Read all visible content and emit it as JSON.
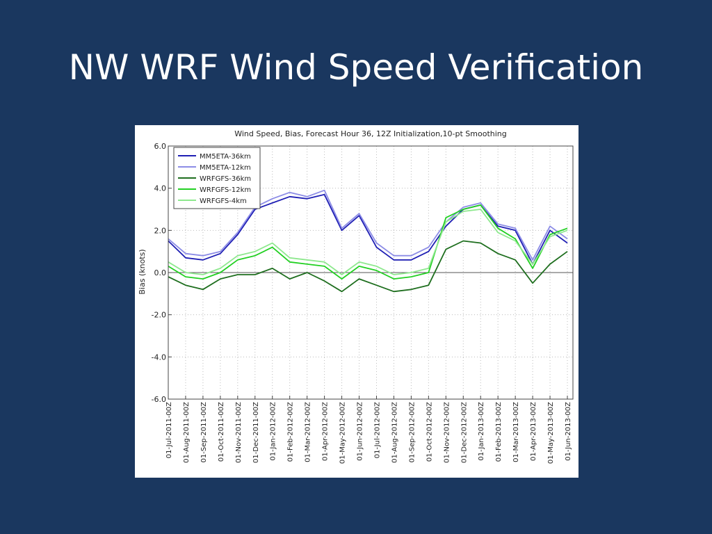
{
  "slide": {
    "title": "NW WRF Wind Speed Verification"
  },
  "chart_data": {
    "type": "line",
    "title": "Wind Speed, Bias, Forecast Hour 36, 12Z Initialization,10-pt Smoothing",
    "xlabel": "",
    "ylabel": "Bias (knots)",
    "ylim": [
      -6.0,
      6.0
    ],
    "yticks": [
      "6.0",
      "4.0",
      "2.0",
      "0.0",
      "-2.0",
      "-4.0",
      "-6.0"
    ],
    "ytick_values": [
      6,
      4,
      2,
      0,
      -2,
      -4,
      -6
    ],
    "grid": true,
    "legend_position": "top-left",
    "x": [
      "01-Jul-2011-00Z",
      "01-Aug-2011-00Z",
      "01-Sep-2011-00Z",
      "01-Oct-2011-00Z",
      "01-Nov-2011-00Z",
      "01-Dec-2011-00Z",
      "01-Jan-2012-00Z",
      "01-Feb-2012-00Z",
      "01-Mar-2012-00Z",
      "01-Apr-2012-00Z",
      "01-May-2012-00Z",
      "01-Jun-2012-00Z",
      "01-Jul-2012-00Z",
      "01-Aug-2012-00Z",
      "01-Sep-2012-00Z",
      "01-Oct-2012-00Z",
      "01-Nov-2012-00Z",
      "01-Dec-2012-00Z",
      "01-Jan-2013-00Z",
      "01-Feb-2013-00Z",
      "01-Mar-2013-00Z",
      "01-Apr-2013-00Z",
      "01-May-2013-00Z",
      "01-Jun-2013-00Z"
    ],
    "xticks": [
      "01-Jul-2011-00Z",
      "01-Aug-2011-00Z",
      "01-Sep-2011-00Z",
      "01-Oct-2011-00Z",
      "01-Nov-2011-00Z",
      "01-Dec-2011-00Z",
      "01-Jan-2012-00Z",
      "01-Feb-2012-00Z",
      "01-Mar-2012-00Z",
      "01-Apr-2012-00Z",
      "01-May-2012-00Z",
      "01-Jun-2012-00Z",
      "01-Jul-2012-00Z",
      "01-Aug-2012-00Z",
      "01-Sep-2012-00Z",
      "01-Oct-2012-00Z",
      "01-Nov-2012-00Z",
      "01-Dec-2012-00Z",
      "01-Jan-2013-00Z",
      "01-Feb-2013-00Z",
      "01-Mar-2013-00Z",
      "01-Apr-2013-00Z",
      "01-May-2013-00Z",
      "01-Jun-2013-00Z"
    ],
    "series": [
      {
        "name": "MM5ETA-36km",
        "color": "#1f1fb4",
        "values": [
          1.5,
          0.7,
          0.6,
          0.9,
          1.8,
          3.0,
          3.3,
          3.6,
          3.5,
          3.7,
          2.0,
          2.7,
          1.2,
          0.6,
          0.6,
          1.0,
          2.2,
          3.0,
          3.2,
          2.2,
          2.0,
          0.4,
          2.0,
          1.4
        ]
      },
      {
        "name": "MM5ETA-12km",
        "color": "#8c8ce6",
        "values": [
          1.6,
          0.9,
          0.8,
          1.0,
          1.9,
          3.1,
          3.5,
          3.8,
          3.6,
          3.9,
          2.1,
          2.8,
          1.4,
          0.8,
          0.8,
          1.2,
          2.4,
          3.1,
          3.3,
          2.3,
          2.1,
          0.6,
          2.2,
          1.6
        ]
      },
      {
        "name": "WRFGFS-36km",
        "color": "#1e6e1e",
        "values": [
          -0.2,
          -0.6,
          -0.8,
          -0.3,
          -0.1,
          -0.1,
          0.2,
          -0.3,
          0.0,
          -0.4,
          -0.9,
          -0.3,
          -0.6,
          -0.9,
          -0.8,
          -0.6,
          1.1,
          1.5,
          1.4,
          0.9,
          0.6,
          -0.5,
          0.4,
          1.0
        ]
      },
      {
        "name": "WRFGFS-12km",
        "color": "#22d022",
        "values": [
          0.3,
          -0.2,
          -0.3,
          0.0,
          0.6,
          0.8,
          1.2,
          0.5,
          0.4,
          0.3,
          -0.3,
          0.3,
          0.1,
          -0.3,
          -0.2,
          0.0,
          2.6,
          3.0,
          3.2,
          2.1,
          1.6,
          0.2,
          1.8,
          2.1
        ]
      },
      {
        "name": "WRFGFS-4km",
        "color": "#8ee88e",
        "values": [
          0.5,
          0.0,
          -0.1,
          0.2,
          0.8,
          1.0,
          1.4,
          0.7,
          0.6,
          0.5,
          -0.1,
          0.5,
          0.3,
          -0.1,
          0.0,
          0.2,
          2.4,
          2.9,
          3.0,
          1.9,
          1.5,
          0.4,
          1.7,
          2.0
        ]
      }
    ]
  }
}
